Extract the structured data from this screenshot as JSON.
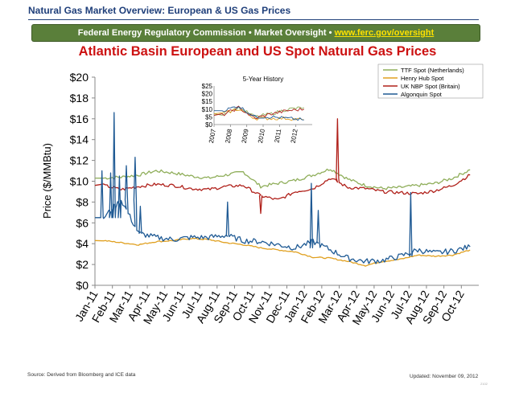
{
  "header": {
    "title": "Natural Gas Market Overview: European & US Gas Prices",
    "banner_text": "Federal Energy Regulatory Commission • Market Oversight • ",
    "banner_link": "www.ferc.gov/oversight"
  },
  "footer": {
    "source": "Source: Derived from Bloomberg and ICE data",
    "updated": "Updated: November 09, 2012",
    "page": "2102"
  },
  "chart_data": [
    {
      "type": "line",
      "title": "Atlantic Basin European and US Spot Natural Gas Prices",
      "xlabel": "",
      "ylabel": "Price ($/MMBtu)",
      "ylim": [
        0,
        20
      ],
      "yticks": [
        "$0",
        "$2",
        "$4",
        "$6",
        "$8",
        "$10",
        "$12",
        "$14",
        "$16",
        "$18",
        "$20"
      ],
      "categories": [
        "Jan-11",
        "Feb-11",
        "Mar-11",
        "Apr-11",
        "May-11",
        "Jun-11",
        "Jul-11",
        "Aug-11",
        "Sep-11",
        "Oct-11",
        "Nov-11",
        "Dec-11",
        "Jan-12",
        "Feb-12",
        "Mar-12",
        "Apr-12",
        "May-12",
        "Jun-12",
        "Jul-12",
        "Aug-12",
        "Sep-12",
        "Oct-12"
      ],
      "legend_position": "top-right",
      "series": [
        {
          "name": "TTF Spot (Netherlands)",
          "color": "#8fae5a",
          "values": [
            10.3,
            10.4,
            10.6,
            11.0,
            10.8,
            10.5,
            10.3,
            10.6,
            10.9,
            9.5,
            9.8,
            10.1,
            10.6,
            11.2,
            10.2,
            9.6,
            9.3,
            9.4,
            9.6,
            9.8,
            10.3,
            11.1
          ]
        },
        {
          "name": "Henry Hub Spot",
          "color": "#e0a020",
          "values": [
            4.3,
            4.1,
            3.9,
            4.2,
            4.3,
            4.5,
            4.4,
            4.1,
            3.9,
            3.6,
            3.4,
            3.2,
            2.7,
            2.6,
            2.3,
            1.9,
            2.3,
            2.5,
            2.9,
            2.8,
            2.9,
            3.4
          ]
        },
        {
          "name": "UK NBP Spot (Britain)",
          "color": "#b0201a",
          "values": [
            9.6,
            9.2,
            9.5,
            9.7,
            9.6,
            9.3,
            9.2,
            9.5,
            9.6,
            8.6,
            8.2,
            9.0,
            9.3,
            10.3,
            9.4,
            9.3,
            9.0,
            8.9,
            8.8,
            9.1,
            9.6,
            10.6
          ]
        },
        {
          "name": "Algonquin Spot",
          "color": "#1f5a94",
          "values": [
            6.5,
            8.2,
            5.0,
            4.6,
            4.4,
            4.6,
            4.6,
            4.8,
            4.3,
            4.2,
            3.9,
            3.6,
            4.2,
            3.4,
            2.6,
            2.3,
            2.4,
            2.8,
            3.4,
            3.1,
            3.3,
            3.7
          ]
        }
      ],
      "spikes": [
        {
          "series": "Algonquin Spot",
          "x": 0.4,
          "y": 11.0
        },
        {
          "series": "Algonquin Spot",
          "x": 0.9,
          "y": 10.8
        },
        {
          "series": "Algonquin Spot",
          "x": 1.1,
          "y": 16.6
        },
        {
          "series": "Algonquin Spot",
          "x": 1.4,
          "y": 10.5
        },
        {
          "series": "Algonquin Spot",
          "x": 1.8,
          "y": 11.5
        },
        {
          "series": "Algonquin Spot",
          "x": 2.3,
          "y": 12.3
        },
        {
          "series": "Algonquin Spot",
          "x": 2.6,
          "y": 7.6
        },
        {
          "series": "Algonquin Spot",
          "x": 7.6,
          "y": 8.0
        },
        {
          "series": "Algonquin Spot",
          "x": 12.4,
          "y": 9.8
        },
        {
          "series": "Algonquin Spot",
          "x": 12.8,
          "y": 7.2
        },
        {
          "series": "Algonquin Spot",
          "x": 18.1,
          "y": 8.9
        },
        {
          "series": "UK NBP Spot (Britain)",
          "x": 13.9,
          "y": 16.0
        },
        {
          "series": "UK NBP Spot (Britain)",
          "x": 9.5,
          "y": 6.9
        }
      ]
    },
    {
      "type": "line",
      "title": "5-Year History",
      "ylim": [
        0,
        25
      ],
      "yticks": [
        "$0",
        "$5",
        "$10",
        "$15",
        "$20",
        "$25"
      ],
      "categories": [
        "2007",
        "2008",
        "2009",
        "2010",
        "2011",
        "2012"
      ],
      "series": [
        {
          "name": "TTF Spot (Netherlands)",
          "values": [
            7,
            11,
            5,
            7,
            10,
            11
          ]
        },
        {
          "name": "Henry Hub Spot",
          "values": [
            7,
            10,
            4,
            4,
            4,
            3
          ]
        },
        {
          "name": "UK NBP Spot (Britain)",
          "values": [
            6,
            11,
            4,
            7,
            9,
            10
          ]
        },
        {
          "name": "Algonquin Spot",
          "values": [
            9,
            12,
            5,
            5,
            4,
            3
          ]
        }
      ]
    }
  ]
}
